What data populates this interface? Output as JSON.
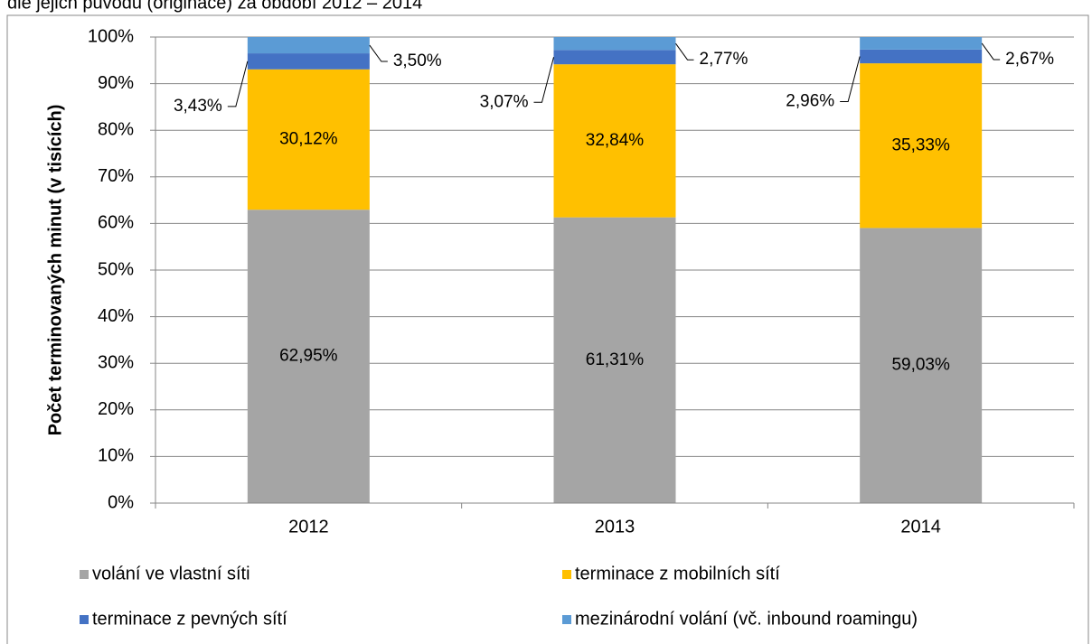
{
  "chart_data": {
    "type": "stacked_bar",
    "title": "dle jejich původu (originace) za období 2012 – 2014",
    "y_label": "Počet terminovaných minut (v tisících)",
    "categories": [
      "2012",
      "2013",
      "2014"
    ],
    "series": [
      {
        "name": "volání ve vlastní síti",
        "color": "#a5a5a5",
        "values": [
          62.95,
          61.31,
          59.03
        ],
        "value_labels": [
          "62,95%",
          "61,31%",
          "59,03%"
        ]
      },
      {
        "name": "terminace z mobilních sítí",
        "color": "#ffc000",
        "values": [
          30.12,
          32.84,
          35.33
        ],
        "value_labels": [
          "30,12%",
          "32,84%",
          "35,33%"
        ]
      },
      {
        "name": "terminace z pevných sítí",
        "color": "#4472c4",
        "values": [
          3.43,
          3.07,
          2.96
        ],
        "value_labels": [
          "3,43%",
          "3,07%",
          "2,96%"
        ]
      },
      {
        "name": "mezinárodní volání (vč. inbound roamingu)",
        "color": "#5b9bd5",
        "values": [
          3.5,
          2.77,
          2.67
        ],
        "value_labels": [
          "3,50%",
          "2,77%",
          "2,67%"
        ]
      }
    ],
    "ylim": [
      0,
      100
    ],
    "yticks": [
      {
        "value": 0,
        "label": "0%"
      },
      {
        "value": 10,
        "label": "10%"
      },
      {
        "value": 20,
        "label": "20%"
      },
      {
        "value": 30,
        "label": "30%"
      },
      {
        "value": 40,
        "label": "40%"
      },
      {
        "value": 50,
        "label": "50%"
      },
      {
        "value": 60,
        "label": "60%"
      },
      {
        "value": 70,
        "label": "70%"
      },
      {
        "value": 80,
        "label": "80%"
      },
      {
        "value": 90,
        "label": "90%"
      },
      {
        "value": 100,
        "label": "100%"
      }
    ],
    "grid": true
  }
}
